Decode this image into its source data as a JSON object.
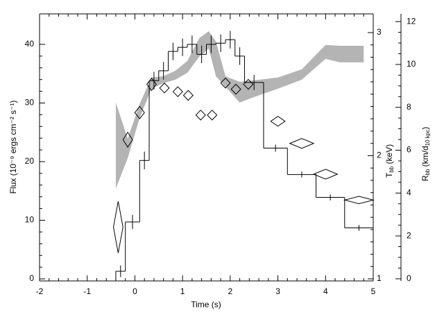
{
  "chart_data": {
    "type": "step",
    "x_label": "Time (s)",
    "y_label": "Flux (10⁻⁹ ergs cm⁻² s⁻¹)",
    "y2_label": [
      {
        "text": "T"
      },
      {
        "text": "bb",
        "sub": true
      },
      {
        "text": " (keV)"
      }
    ],
    "y3_label": [
      {
        "text": "R"
      },
      {
        "text": "bb",
        "sub": true
      },
      {
        "text": " (km/d"
      },
      {
        "text": "10 kpc",
        "sub": true
      },
      {
        "text": ")"
      }
    ],
    "xlim": [
      -2,
      5
    ],
    "xticks": [
      -2,
      -1,
      0,
      1,
      2,
      3,
      4,
      5
    ],
    "ylim": [
      -0.35,
      45.2
    ],
    "yticks": [
      0,
      10,
      20,
      30,
      40
    ],
    "y2lim": [
      0.983,
      3.152
    ],
    "y2ticks": [
      1,
      2,
      3
    ],
    "y3lim": [
      -0.1,
      12.36
    ],
    "y3ticks": [
      0,
      2,
      4,
      6,
      8,
      10,
      12
    ],
    "series": [
      {
        "name": "Flux",
        "axis": "y",
        "color": "#000000",
        "bins": [
          -0.4,
          -0.2,
          0.1,
          0.3,
          0.5,
          0.7,
          0.9,
          1.1,
          1.3,
          1.5,
          1.7,
          1.9,
          2.1,
          2.3,
          2.7,
          3.2,
          3.8,
          4.4,
          5.0
        ],
        "values": [
          1.3,
          9.7,
          20.2,
          33.8,
          35.5,
          38.8,
          39.5,
          40.0,
          38.3,
          40.0,
          40.2,
          40.8,
          38.0,
          33.5,
          22.3,
          17.8,
          13.9,
          8.7
        ],
        "errors": [
          1.0,
          1.2,
          1.5,
          1.5,
          1.5,
          1.5,
          1.5,
          1.5,
          1.5,
          1.5,
          1.5,
          1.5,
          1.5,
          1.3,
          0.6,
          0.5,
          0.5,
          0.5
        ]
      },
      {
        "name": "Tbb",
        "axis": "y2",
        "color": "#000000",
        "x": [
          -0.35,
          -0.15,
          0.1,
          0.35,
          0.62,
          0.9,
          1.12,
          1.38,
          1.62,
          1.9,
          2.12,
          2.38,
          3.0,
          3.5,
          4.0,
          4.7
        ],
        "xerr": [
          0.1,
          0.1,
          0.1,
          0.1,
          0.1,
          0.1,
          0.1,
          0.1,
          0.1,
          0.1,
          0.1,
          0.1,
          0.15,
          0.25,
          0.25,
          0.3
        ],
        "values": [
          1.42,
          2.13,
          2.35,
          2.58,
          2.55,
          2.52,
          2.49,
          2.33,
          2.33,
          2.59,
          2.54,
          2.58,
          2.28,
          2.1,
          1.85,
          1.64
        ],
        "yerr": [
          0.21,
          0.06,
          0.05,
          0.05,
          0.04,
          0.04,
          0.04,
          0.04,
          0.04,
          0.04,
          0.04,
          0.04,
          0.04,
          0.04,
          0.04,
          0.03
        ]
      },
      {
        "name": "Rbb",
        "axis": "y3",
        "color": "#b4b4b4",
        "x": [
          -0.4,
          -0.15,
          0.1,
          0.35,
          0.6,
          0.85,
          1.1,
          1.35,
          1.55,
          1.7,
          1.9,
          2.2,
          2.5,
          3.0,
          3.5,
          4.0,
          4.3,
          4.8
        ],
        "upper": [
          8.22,
          6.54,
          8.16,
          9.39,
          9.45,
          9.71,
          10.16,
          11.23,
          11.55,
          11.07,
          9.45,
          9.19,
          9.26,
          9.39,
          9.77,
          10.91,
          10.87,
          10.87
        ],
        "lower": [
          4.21,
          5.63,
          7.51,
          8.87,
          9.13,
          9.29,
          9.61,
          10.36,
          10.74,
          9.45,
          8.96,
          8.22,
          8.48,
          8.87,
          9.29,
          10.26,
          10.1,
          10.1
        ]
      }
    ]
  }
}
